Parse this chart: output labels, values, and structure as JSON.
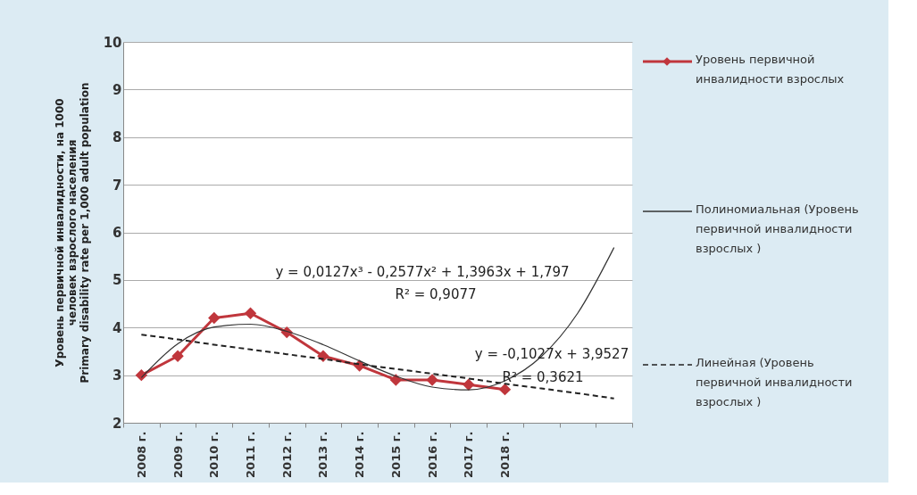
{
  "chart_data": {
    "type": "line",
    "ylabel": "Уровень первичной инвалидности, на 1000\nчеловек взрослого населения\nPrimary disability rate per 1,000 adult population",
    "categories": [
      "2008 г.",
      "2009 г.",
      "2010 г.",
      "2011 г.",
      "2012 г.",
      "2013 г.",
      "2014 г.",
      "2015 г.",
      "2016 г.",
      "2017 г.",
      "2018 г.",
      null,
      null,
      null
    ],
    "series": [
      {
        "name": "Уровень первичной инвалидности взрослых",
        "color": "#c0363c",
        "marker": "diamond",
        "line_style": "solid",
        "values": [
          3.0,
          3.4,
          4.2,
          4.3,
          3.9,
          3.4,
          3.2,
          2.9,
          2.9,
          2.8,
          2.7,
          null,
          null,
          null
        ]
      },
      {
        "name": "Полиномиальная (Уровень первичной инвалидности взрослых )",
        "color": "#333333",
        "marker": "none",
        "line_style": "solid",
        "values": [
          2.95,
          3.66,
          4.01,
          4.07,
          3.92,
          3.64,
          3.3,
          2.98,
          2.75,
          2.69,
          2.88,
          3.39,
          4.3,
          5.68
        ]
      },
      {
        "name": "Линейная (Уровень первичной инвалидности взрослых )",
        "color": "#222222",
        "marker": "none",
        "line_style": "dashed",
        "values": [
          3.85,
          3.75,
          3.64,
          3.54,
          3.44,
          3.34,
          3.23,
          3.13,
          3.03,
          2.93,
          2.82,
          2.72,
          2.62,
          2.51
        ]
      }
    ],
    "ylim": [
      2,
      10
    ],
    "yticks": [
      2,
      3,
      4,
      5,
      6,
      7,
      8,
      9,
      10
    ],
    "grid": "y",
    "legend": "right",
    "annotations": [
      "y = 0,0127x³ - 0,2577x² + 1,3963x + 1,797",
      "R² = 0,9077",
      "y = -0,1027x + 3,9527",
      "R² = 0,3621"
    ]
  }
}
